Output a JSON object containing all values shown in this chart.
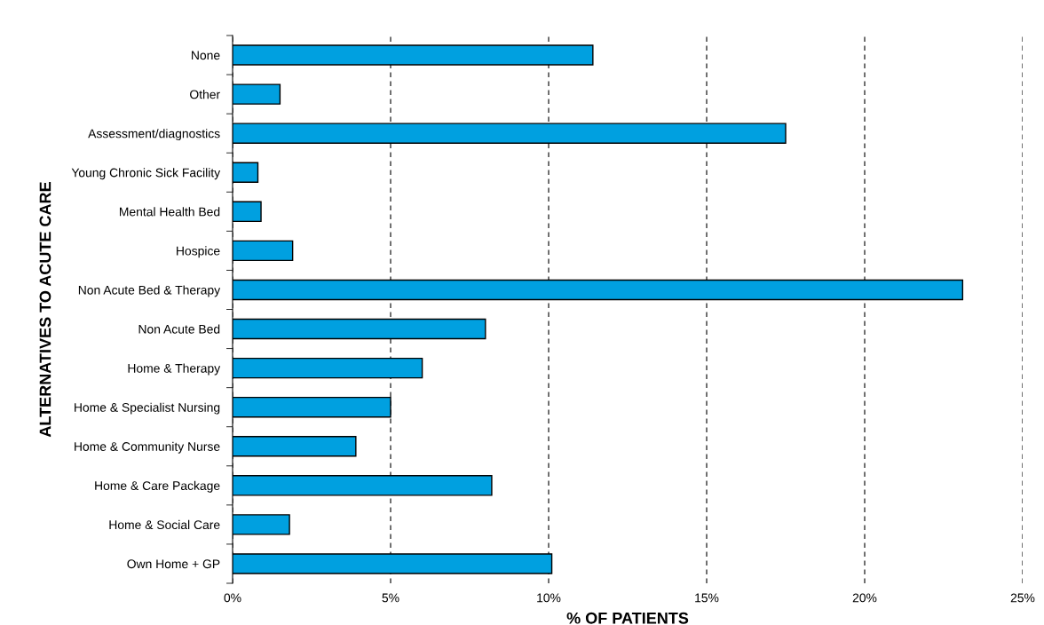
{
  "chart_data": {
    "type": "bar",
    "orientation": "horizontal",
    "xlabel": "% OF PATIENTS",
    "ylabel": "ALTERNATIVES TO ACUTE CARE",
    "categories": [
      "None",
      "Other",
      "Assessment/diagnostics",
      "Young Chronic Sick Facility",
      "Mental Health Bed",
      "Hospice",
      "Non Acute Bed & Therapy",
      "Non Acute Bed",
      "Home & Therapy",
      "Home & Specialist Nursing",
      "Home & Community Nurse",
      "Home & Care Package",
      "Home & Social Care",
      "Own Home + GP"
    ],
    "values": [
      11.4,
      1.5,
      17.5,
      0.8,
      0.9,
      1.9,
      23.1,
      8.0,
      6.0,
      5.0,
      3.9,
      8.2,
      1.8,
      10.1
    ],
    "color": "#00a0e0",
    "xlim": [
      0,
      25
    ],
    "xticks": [
      {
        "value": 0,
        "label": "0%"
      },
      {
        "value": 5,
        "label": "5%"
      },
      {
        "value": 10,
        "label": "10%"
      },
      {
        "value": 15,
        "label": "15%"
      },
      {
        "value": 20,
        "label": "20%"
      },
      {
        "value": 25,
        "label": "25%"
      }
    ],
    "grid": "x",
    "legend": false
  }
}
